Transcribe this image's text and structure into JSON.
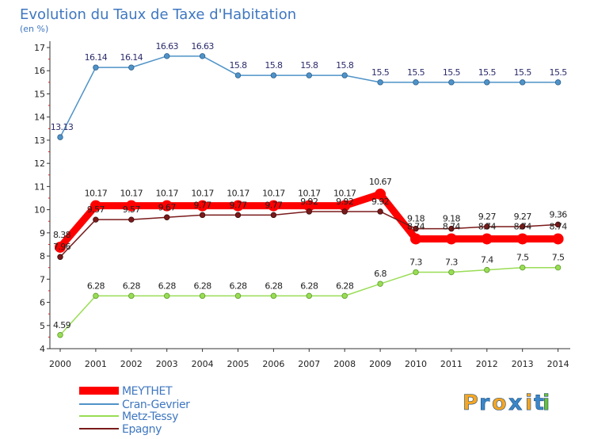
{
  "chart_data": {
    "type": "line",
    "title": "Evolution du Taux de Taxe d'Habitation",
    "subtitle": "(en %)",
    "x": [
      "2000",
      "2001",
      "2002",
      "2003",
      "2004",
      "2005",
      "2006",
      "2007",
      "2008",
      "2009",
      "2010",
      "2011",
      "2012",
      "2013",
      "2014"
    ],
    "ylim": [
      4,
      17
    ],
    "yticks": [
      "4",
      "5",
      "6",
      "7",
      "8",
      "9",
      "10",
      "11",
      "12",
      "13",
      "14",
      "15",
      "16",
      "17"
    ],
    "grid": false,
    "legend_position": "bottom-left",
    "series": [
      {
        "name": "MEYTHET",
        "color": "#ff0000",
        "values": [
          8.38,
          10.17,
          10.17,
          10.17,
          10.17,
          10.17,
          10.17,
          10.17,
          10.17,
          10.67,
          8.74,
          8.74,
          8.74,
          8.74,
          8.74
        ],
        "labels": [
          "8.38",
          "10.17",
          "10.17",
          "10.17",
          "10.17",
          "10.17",
          "10.17",
          "10.17",
          "10.17",
          "10.67",
          "8.74",
          "8.74",
          "8.74",
          "8.74",
          "8.74"
        ]
      },
      {
        "name": "Cran-Gevrier",
        "color": "#4f93c8",
        "values": [
          13.13,
          16.14,
          16.14,
          16.63,
          16.63,
          15.8,
          15.8,
          15.8,
          15.8,
          15.5,
          15.5,
          15.5,
          15.5,
          15.5,
          15.5
        ],
        "labels": [
          "13.13",
          "16.14",
          "16.14",
          "16.63",
          "16.63",
          "15.8",
          "15.8",
          "15.8",
          "15.8",
          "15.5",
          "15.5",
          "15.5",
          "15.5",
          "15.5",
          "15.5"
        ]
      },
      {
        "name": "Metz-Tessy",
        "color": "#99dd55",
        "values": [
          4.59,
          6.28,
          6.28,
          6.28,
          6.28,
          6.28,
          6.28,
          6.28,
          6.28,
          6.8,
          7.3,
          7.3,
          7.4,
          7.5,
          7.5
        ],
        "labels": [
          "4.59",
          "6.28",
          "6.28",
          "6.28",
          "6.28",
          "6.28",
          "6.28",
          "6.28",
          "6.28",
          "6.8",
          "7.3",
          "7.3",
          "7.4",
          "7.5",
          "7.5"
        ]
      },
      {
        "name": "Epagny",
        "color": "#7a1a1a",
        "values": [
          7.96,
          9.57,
          9.57,
          9.67,
          9.77,
          9.77,
          9.77,
          9.92,
          9.92,
          9.92,
          9.18,
          9.18,
          9.27,
          9.27,
          9.36
        ],
        "labels": [
          "7.96",
          "9.57",
          "9.57",
          "9.67",
          "9.77",
          "9.77",
          "9.77",
          "9.92",
          "9.92",
          "9.92",
          "9.18",
          "9.18",
          "9.27",
          "9.27",
          "9.36"
        ]
      }
    ]
  },
  "brand": {
    "logo_text": "Proxiti",
    "letters": [
      "P",
      "r",
      "o",
      "x",
      "i",
      "t",
      "i"
    ],
    "letter_colors": [
      "#f5a623",
      "#3a86c8",
      "#f5a623",
      "#3a86c8",
      "#f5a623",
      "#3a86c8",
      "#6bbf3a"
    ]
  }
}
